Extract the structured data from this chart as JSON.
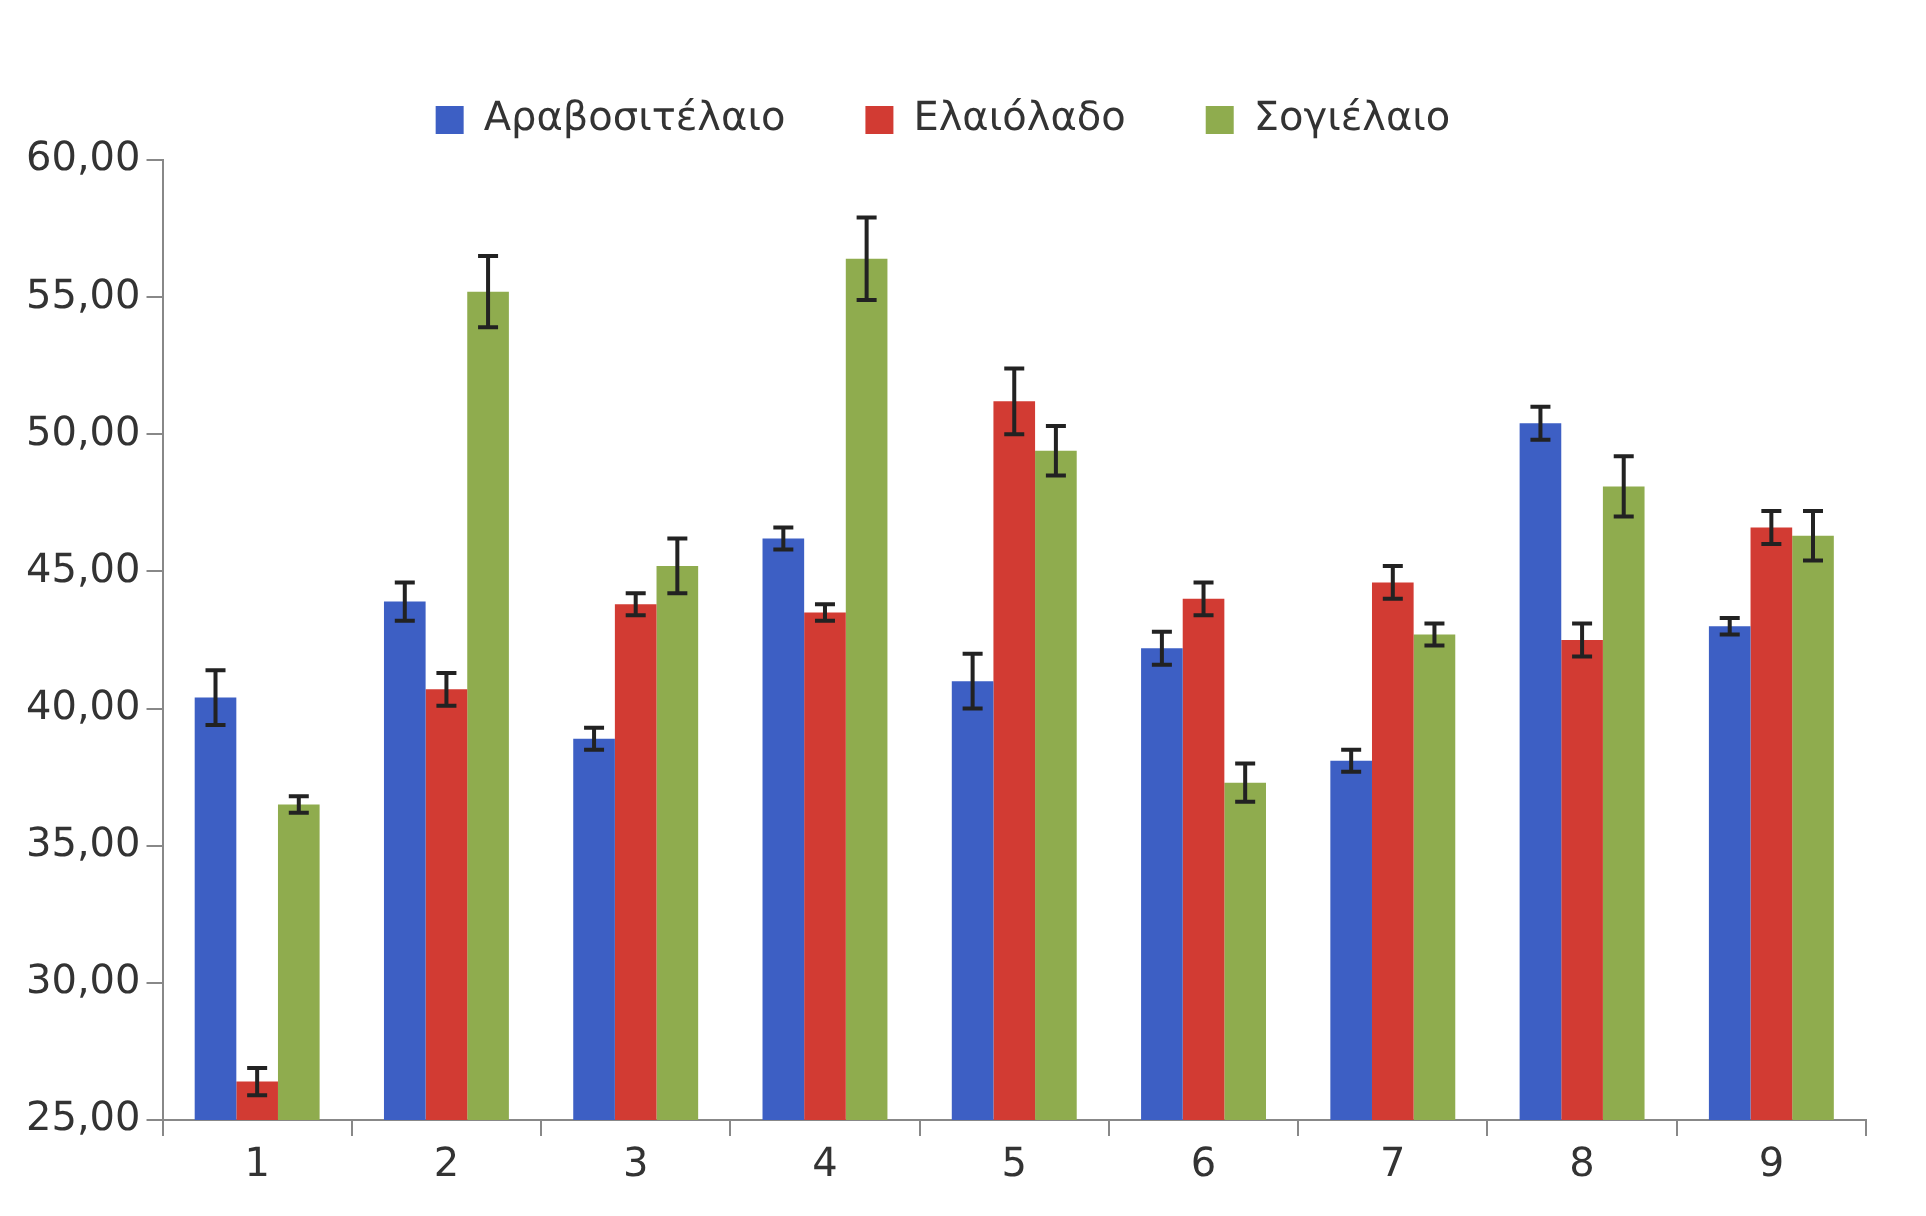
{
  "chart_data": {
    "type": "bar",
    "categories": [
      "1",
      "2",
      "3",
      "4",
      "5",
      "6",
      "7",
      "8",
      "9"
    ],
    "series": [
      {
        "name": "Αραβοσιτέλαιο",
        "color": "#3d5fc4",
        "values": [
          40.4,
          43.9,
          38.9,
          46.2,
          41.0,
          42.2,
          38.1,
          50.4,
          43.0
        ],
        "errors": [
          1.0,
          0.7,
          0.4,
          0.4,
          1.0,
          0.6,
          0.4,
          0.6,
          0.3
        ]
      },
      {
        "name": "Ελαιόλαδο",
        "color": "#d23b33",
        "values": [
          26.4,
          40.7,
          43.8,
          43.5,
          51.2,
          44.0,
          44.6,
          42.5,
          46.6
        ],
        "errors": [
          0.5,
          0.6,
          0.4,
          0.3,
          1.2,
          0.6,
          0.6,
          0.6,
          0.6
        ]
      },
      {
        "name": "Σογιέλαιο",
        "color": "#8fac4e",
        "values": [
          36.5,
          55.2,
          45.2,
          56.4,
          49.4,
          37.3,
          42.7,
          48.1,
          46.3
        ],
        "errors": [
          0.3,
          1.3,
          1.0,
          1.5,
          0.9,
          0.7,
          0.4,
          1.1,
          0.9
        ]
      }
    ],
    "ylim": [
      25,
      60
    ],
    "yticks": [
      {
        "value": 25,
        "label": "25,00"
      },
      {
        "value": 30,
        "label": "30,00"
      },
      {
        "value": 35,
        "label": "35,00"
      },
      {
        "value": 40,
        "label": "40,00"
      },
      {
        "value": 45,
        "label": "45,00"
      },
      {
        "value": 50,
        "label": "50,00"
      },
      {
        "value": 55,
        "label": "55,00"
      },
      {
        "value": 60,
        "label": "60,00"
      }
    ],
    "grid": false,
    "legend": "top"
  }
}
